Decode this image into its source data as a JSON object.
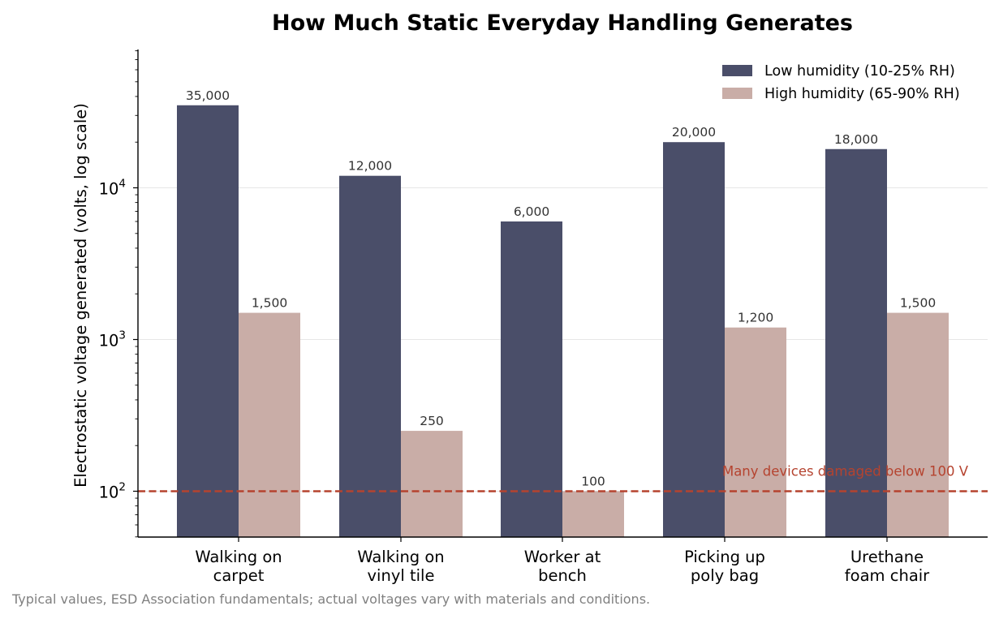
{
  "chart_data": {
    "type": "bar",
    "title": "How Much Static Everyday Handling Generates",
    "xlabel": "",
    "ylabel": "Electrostatic voltage generated (volts, log scale)",
    "yscale": "log",
    "ylim": [
      50,
      80000
    ],
    "yticks": [
      {
        "value": 100,
        "base": "10",
        "exp": "2"
      },
      {
        "value": 1000,
        "base": "10",
        "exp": "3"
      },
      {
        "value": 10000,
        "base": "10",
        "exp": "4"
      }
    ],
    "grid": "horizontal, major ticks",
    "legend_position": "top-right",
    "categories": [
      [
        "Walking on",
        "carpet"
      ],
      [
        "Walking on",
        "vinyl tile"
      ],
      [
        "Worker at",
        "bench"
      ],
      [
        "Picking up",
        "poly bag"
      ],
      [
        "Urethane",
        "foam chair"
      ]
    ],
    "series": [
      {
        "name": "Low humidity (10-25% RH)",
        "color": "#4a4e69",
        "values": [
          35000,
          12000,
          6000,
          20000,
          18000
        ],
        "labels": [
          "35,000",
          "12,000",
          "6,000",
          "20,000",
          "18,000"
        ]
      },
      {
        "name": "High humidity (65-90% RH)",
        "color": "#c9ada7",
        "values": [
          1500,
          250,
          100,
          1200,
          1500
        ],
        "labels": [
          "1,500",
          "250",
          "100",
          "1,200",
          "1,500"
        ]
      }
    ],
    "reference_line": {
      "value": 100,
      "label": "Many devices damaged below 100 V",
      "color": "#b5432f",
      "style": "dashed"
    },
    "footnote": "Typical values, ESD Association fundamentals; actual voltages vary with materials and conditions."
  }
}
